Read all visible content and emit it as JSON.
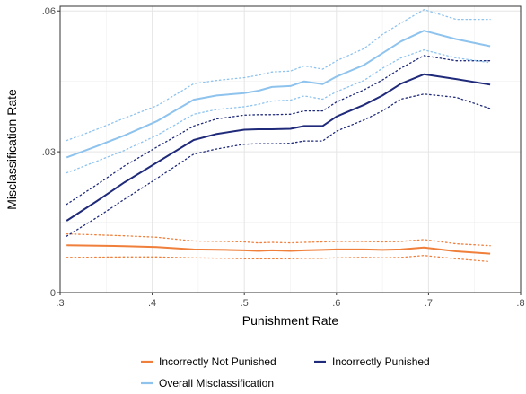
{
  "chart_data": {
    "type": "line",
    "xlabel": "Punishment Rate",
    "ylabel": "Misclassification Rate",
    "xlim": [
      0.3,
      0.8
    ],
    "ylim": [
      0,
      0.061
    ],
    "x_ticks": [
      {
        "value": 0.3,
        "label": ".3"
      },
      {
        "value": 0.4,
        "label": ".4"
      },
      {
        "value": 0.5,
        "label": ".5"
      },
      {
        "value": 0.6,
        "label": ".6"
      },
      {
        "value": 0.7,
        "label": ".7"
      },
      {
        "value": 0.8,
        "label": ".8"
      }
    ],
    "y_ticks": [
      {
        "value": 0,
        "label": "0"
      },
      {
        "value": 0.03,
        "label": ".03"
      },
      {
        "value": 0.06,
        "label": ".06"
      }
    ],
    "grid": true,
    "legend_position": "bottom",
    "series": [
      {
        "name": "Incorrectly Not Punished",
        "color": "#ef7f3b",
        "x": [
          0.307,
          0.37,
          0.405,
          0.445,
          0.48,
          0.5,
          0.515,
          0.53,
          0.55,
          0.565,
          0.585,
          0.6,
          0.63,
          0.65,
          0.67,
          0.695,
          0.73,
          0.767
        ],
        "values": [
          0.0101,
          0.0099,
          0.0097,
          0.0092,
          0.0091,
          0.009,
          0.0089,
          0.009,
          0.0089,
          0.009,
          0.0091,
          0.0092,
          0.0092,
          0.0091,
          0.0092,
          0.0096,
          0.0088,
          0.0083
        ],
        "lower": [
          0.0075,
          0.0076,
          0.0076,
          0.0074,
          0.0073,
          0.0072,
          0.0072,
          0.0072,
          0.0072,
          0.0073,
          0.0073,
          0.0074,
          0.0075,
          0.0074,
          0.0075,
          0.0079,
          0.0072,
          0.0066
        ],
        "upper": [
          0.0125,
          0.0121,
          0.0118,
          0.011,
          0.0109,
          0.0108,
          0.0106,
          0.0107,
          0.0106,
          0.0107,
          0.0108,
          0.0109,
          0.0109,
          0.0108,
          0.0109,
          0.0113,
          0.0104,
          0.01
        ]
      },
      {
        "name": "Incorrectly Punished",
        "color": "#1f2a7a",
        "x": [
          0.307,
          0.34,
          0.37,
          0.405,
          0.445,
          0.47,
          0.5,
          0.515,
          0.53,
          0.55,
          0.565,
          0.585,
          0.6,
          0.63,
          0.65,
          0.67,
          0.695,
          0.73,
          0.767
        ],
        "values": [
          0.0153,
          0.0195,
          0.0235,
          0.0277,
          0.0325,
          0.0338,
          0.0347,
          0.0348,
          0.0348,
          0.0349,
          0.0355,
          0.0355,
          0.0375,
          0.04,
          0.042,
          0.0445,
          0.0465,
          0.0455,
          0.0443
        ],
        "lower": [
          0.012,
          0.016,
          0.0199,
          0.0243,
          0.0295,
          0.0306,
          0.0316,
          0.0317,
          0.0317,
          0.0318,
          0.0323,
          0.0323,
          0.0344,
          0.0368,
          0.0387,
          0.0412,
          0.0423,
          0.0416,
          0.0392
        ],
        "upper": [
          0.0188,
          0.023,
          0.027,
          0.031,
          0.0355,
          0.037,
          0.0378,
          0.0379,
          0.0379,
          0.038,
          0.0387,
          0.0387,
          0.0406,
          0.0432,
          0.0453,
          0.0478,
          0.0505,
          0.0494,
          0.0494
        ]
      },
      {
        "name": "Overall Misclassification",
        "color": "#8ec3ee",
        "x": [
          0.307,
          0.34,
          0.37,
          0.405,
          0.445,
          0.47,
          0.5,
          0.515,
          0.53,
          0.55,
          0.565,
          0.585,
          0.6,
          0.63,
          0.65,
          0.67,
          0.695,
          0.73,
          0.767
        ],
        "values": [
          0.0288,
          0.0312,
          0.0335,
          0.0365,
          0.0411,
          0.042,
          0.0425,
          0.043,
          0.0438,
          0.044,
          0.045,
          0.0444,
          0.046,
          0.0485,
          0.051,
          0.0535,
          0.0558,
          0.054,
          0.0525
        ],
        "lower": [
          0.0255,
          0.028,
          0.0303,
          0.0335,
          0.038,
          0.039,
          0.0396,
          0.0401,
          0.0408,
          0.041,
          0.0419,
          0.0412,
          0.0428,
          0.0452,
          0.0478,
          0.05,
          0.0517,
          0.05,
          0.049
        ],
        "upper": [
          0.0324,
          0.0348,
          0.0372,
          0.0398,
          0.0445,
          0.0452,
          0.0458,
          0.0463,
          0.047,
          0.0472,
          0.0483,
          0.0476,
          0.0494,
          0.052,
          0.055,
          0.0574,
          0.0603,
          0.0582,
          0.0582
        ]
      }
    ]
  }
}
